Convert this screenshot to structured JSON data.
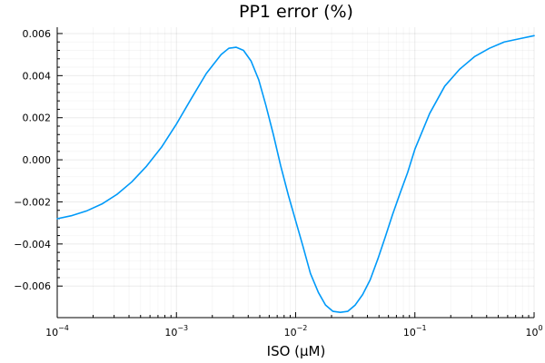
{
  "chart_data": {
    "type": "line",
    "title": "PP1 error (%)",
    "xlabel": "ISO (μM)",
    "ylabel": "",
    "xscale": "log10",
    "xlim": [
      0.0001,
      1
    ],
    "ylim": [
      -0.0075,
      0.0063
    ],
    "grid": true,
    "legend": "none",
    "x_ticks": [
      {
        "value": 0.0001,
        "base": "10",
        "exp": "−4"
      },
      {
        "value": 0.001,
        "base": "10",
        "exp": "−3"
      },
      {
        "value": 0.01,
        "base": "10",
        "exp": "−2"
      },
      {
        "value": 0.1,
        "base": "10",
        "exp": "−1"
      },
      {
        "value": 1,
        "base": "10",
        "exp": "0"
      }
    ],
    "y_ticks": [
      {
        "value": -0.006,
        "label": "−0.006"
      },
      {
        "value": -0.004,
        "label": "−0.004"
      },
      {
        "value": -0.002,
        "label": "−0.002"
      },
      {
        "value": 0.0,
        "label": "0.000"
      },
      {
        "value": 0.002,
        "label": "0.002"
      },
      {
        "value": 0.004,
        "label": "0.004"
      },
      {
        "value": 0.006,
        "label": "0.006"
      }
    ],
    "series": [
      {
        "color": "#009af9",
        "x": [
          0.0001,
          0.000133,
          0.000178,
          0.000237,
          0.000316,
          0.000422,
          0.000562,
          0.00075,
          0.001,
          0.00133,
          0.00178,
          0.00237,
          0.00275,
          0.00316,
          0.00365,
          0.00422,
          0.0049,
          0.00562,
          0.0065,
          0.0075,
          0.0087,
          0.01,
          0.0115,
          0.0133,
          0.0155,
          0.0178,
          0.0205,
          0.0237,
          0.0274,
          0.0316,
          0.0365,
          0.0422,
          0.049,
          0.0562,
          0.065,
          0.075,
          0.087,
          0.1,
          0.133,
          0.178,
          0.237,
          0.316,
          0.422,
          0.562,
          0.75,
          1.0
        ],
        "y": [
          -0.0028,
          -0.00265,
          -0.00242,
          -0.0021,
          -0.00165,
          -0.00105,
          -0.0003,
          0.0006,
          0.0017,
          0.0029,
          0.0041,
          0.005,
          0.0053,
          0.00535,
          0.0052,
          0.0047,
          0.0038,
          0.0026,
          0.0012,
          -0.0003,
          -0.0017,
          -0.0029,
          -0.0041,
          -0.0054,
          -0.0063,
          -0.0069,
          -0.0072,
          -0.00725,
          -0.0072,
          -0.0069,
          -0.0064,
          -0.0057,
          -0.0047,
          -0.0037,
          -0.0026,
          -0.0016,
          -0.0006,
          0.0005,
          0.0022,
          0.0035,
          0.0043,
          0.0049,
          0.0053,
          0.0056,
          0.00575,
          0.0059
        ]
      }
    ]
  }
}
